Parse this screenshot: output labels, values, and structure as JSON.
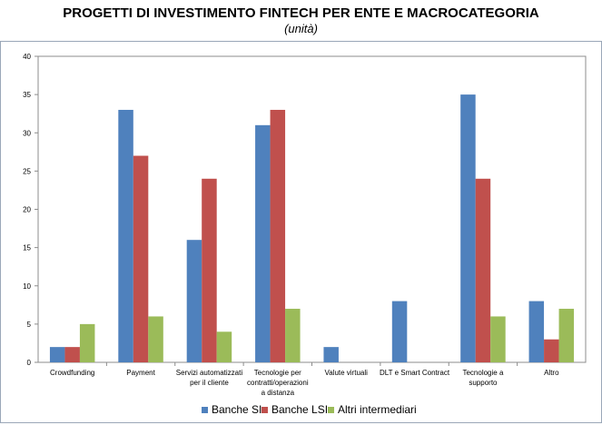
{
  "title": "PROGETTI DI INVESTIMENTO FINTECH PER ENTE E MACROCATEGORIA",
  "subtitle": "(unità)",
  "chart_data": {
    "type": "bar",
    "categories": [
      [
        "Crowdfunding"
      ],
      [
        "Payment"
      ],
      [
        "Servizi automatizzati",
        "per il cliente"
      ],
      [
        "Tecnologie per",
        "contratti/operazioni",
        "a distanza"
      ],
      [
        "Valute virtuali"
      ],
      [
        "DLT e Smart Contract"
      ],
      [
        "Tecnologie a",
        "supporto"
      ],
      [
        "Altro"
      ]
    ],
    "series": [
      {
        "name": "Banche SI",
        "color": "#4f81bd",
        "values": [
          2,
          33,
          16,
          31,
          2,
          8,
          35,
          8
        ]
      },
      {
        "name": "Banche LSI",
        "color": "#c0504d",
        "values": [
          2,
          27,
          24,
          33,
          0,
          0,
          24,
          3
        ]
      },
      {
        "name": "Altri intermediari",
        "color": "#9bbb59",
        "values": [
          5,
          6,
          4,
          7,
          0,
          0,
          6,
          7
        ]
      }
    ],
    "ylim": [
      0,
      40
    ],
    "yticks": [
      0,
      5,
      10,
      15,
      20,
      25,
      30,
      35,
      40
    ],
    "grid": false,
    "legend_position": "bottom"
  }
}
